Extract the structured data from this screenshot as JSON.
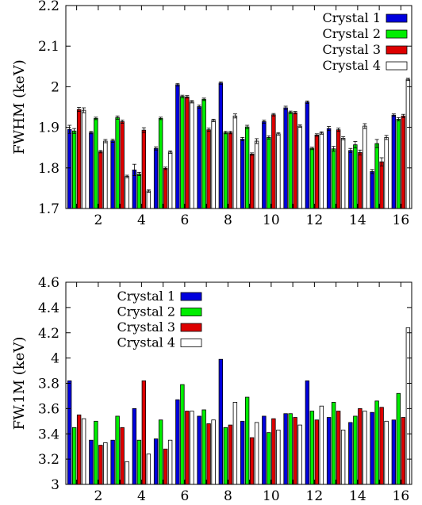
{
  "chart_data": [
    {
      "type": "bar",
      "ylabel": "FWHM (keV)",
      "xlabel": "",
      "ylim": [
        1.7,
        2.2
      ],
      "yticks": [
        "1.7",
        "1.8",
        "1.9",
        "2",
        "2.1",
        "2.2"
      ],
      "xticks": [
        "2",
        "4",
        "6",
        "8",
        "10",
        "12",
        "14",
        "16"
      ],
      "legend_position": "top-right",
      "error_bars": true,
      "categories": [
        1,
        2,
        3,
        4,
        5,
        6,
        7,
        8,
        9,
        10,
        11,
        12,
        13,
        14,
        15,
        16
      ],
      "series": [
        {
          "name": "Crystal 1",
          "color": "#0000dd",
          "values": [
            1.895,
            1.887,
            1.867,
            1.795,
            1.848,
            2.005,
            1.951,
            2.009,
            1.871,
            1.914,
            1.948,
            1.962,
            1.897,
            1.843,
            1.791,
            1.93
          ],
          "errors": [
            0.01,
            0.003,
            0.004,
            0.014,
            0.004,
            0.003,
            0.004,
            0.003,
            0.004,
            0.004,
            0.004,
            0.003,
            0.005,
            0.005,
            0.005,
            0.003
          ]
        },
        {
          "name": "Crystal 2",
          "color": "#00ee00",
          "values": [
            1.891,
            1.922,
            1.924,
            1.785,
            1.922,
            1.976,
            1.969,
            1.887,
            1.901,
            1.875,
            1.937,
            1.848,
            1.847,
            1.857,
            1.86,
            1.92
          ],
          "errors": [
            0.006,
            0.003,
            0.004,
            0.004,
            0.003,
            0.003,
            0.003,
            0.003,
            0.004,
            0.004,
            0.003,
            0.003,
            0.006,
            0.008,
            0.01,
            0.004
          ]
        },
        {
          "name": "Crystal 3",
          "color": "#dd0000",
          "values": [
            1.944,
            1.84,
            1.914,
            1.893,
            1.799,
            1.975,
            1.894,
            1.887,
            1.834,
            1.931,
            1.936,
            1.881,
            1.894,
            1.838,
            1.815,
            1.928
          ],
          "errors": [
            0.005,
            0.003,
            0.004,
            0.006,
            0.003,
            0.003,
            0.004,
            0.003,
            0.003,
            0.003,
            0.003,
            0.003,
            0.004,
            0.006,
            0.01,
            0.004
          ]
        },
        {
          "name": "Crystal 4",
          "color": "#ffffff",
          "values": [
            1.942,
            1.866,
            1.779,
            1.743,
            1.839,
            1.963,
            1.917,
            1.928,
            1.866,
            1.884,
            1.903,
            1.886,
            1.873,
            1.903,
            1.875,
            2.018
          ],
          "errors": [
            0.006,
            0.004,
            0.003,
            0.003,
            0.003,
            0.003,
            0.003,
            0.005,
            0.006,
            0.003,
            0.003,
            0.003,
            0.004,
            0.006,
            0.005,
            0.003
          ]
        }
      ]
    },
    {
      "type": "bar",
      "ylabel": "FW.1M (keV)",
      "xlabel": "",
      "ylim": [
        3,
        4.6
      ],
      "yticks": [
        "3",
        "3.2",
        "3.4",
        "3.6",
        "3.8",
        "4",
        "4.2",
        "4.4",
        "4.6"
      ],
      "xticks": [
        "2",
        "4",
        "6",
        "8",
        "10",
        "12",
        "14",
        "16"
      ],
      "legend_position": "top-left",
      "error_bars": false,
      "categories": [
        1,
        2,
        3,
        4,
        5,
        6,
        7,
        8,
        9,
        10,
        11,
        12,
        13,
        14,
        15,
        16
      ],
      "series": [
        {
          "name": "Crystal 1",
          "color": "#0000dd",
          "values": [
            3.82,
            3.35,
            3.35,
            3.6,
            3.36,
            3.67,
            3.54,
            3.99,
            3.5,
            3.54,
            3.56,
            3.82,
            3.53,
            3.49,
            3.57,
            3.51
          ]
        },
        {
          "name": "Crystal 2",
          "color": "#00ee00",
          "values": [
            3.45,
            3.5,
            3.54,
            3.35,
            3.51,
            3.79,
            3.59,
            3.45,
            3.69,
            3.41,
            3.56,
            3.58,
            3.65,
            3.54,
            3.66,
            3.72
          ]
        },
        {
          "name": "Crystal 3",
          "color": "#dd0000",
          "values": [
            3.55,
            3.31,
            3.45,
            3.82,
            3.28,
            3.58,
            3.48,
            3.47,
            3.37,
            3.52,
            3.53,
            3.51,
            3.58,
            3.6,
            3.61,
            3.53
          ]
        },
        {
          "name": "Crystal 4",
          "color": "#ffffff",
          "values": [
            3.52,
            3.33,
            3.18,
            3.24,
            3.35,
            3.58,
            3.51,
            3.65,
            3.49,
            3.43,
            3.47,
            3.62,
            3.43,
            3.58,
            3.5,
            4.24
          ]
        }
      ]
    }
  ]
}
